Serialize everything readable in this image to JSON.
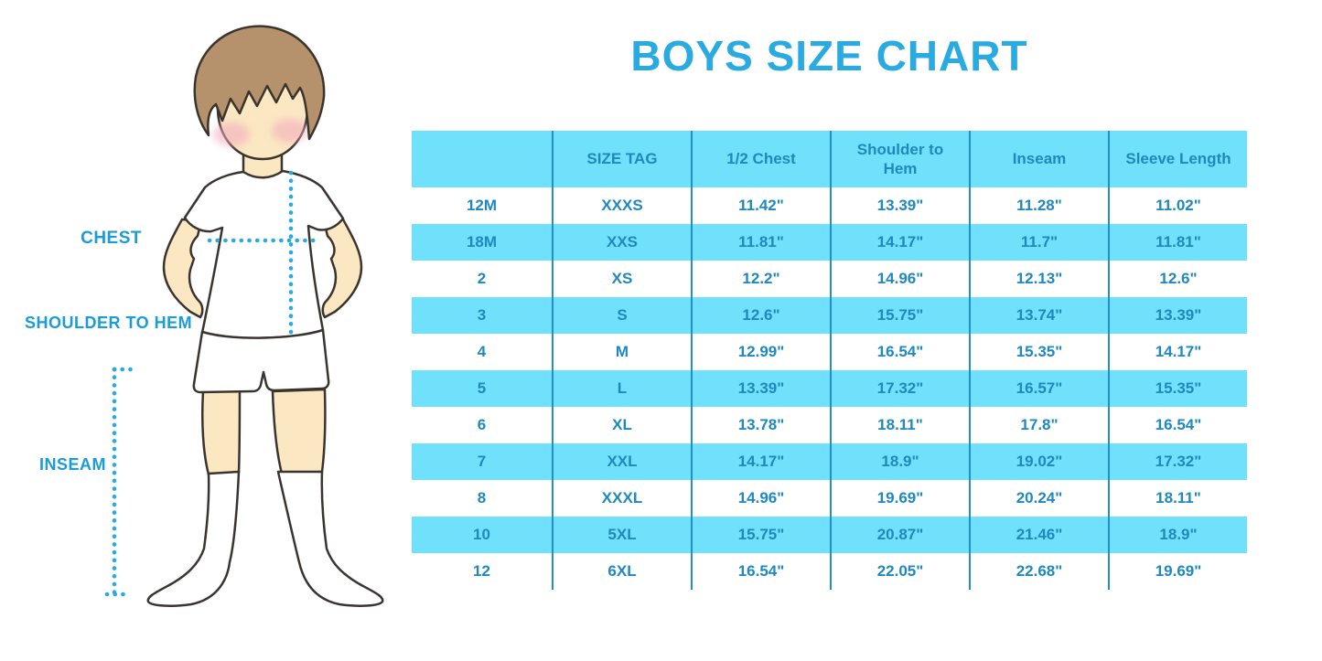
{
  "title": "BOYS SIZE CHART",
  "figure": {
    "chest_label": "CHEST",
    "shoulder_to_hem_label": "SHOULDER TO HEM",
    "inseam_label": "INSEAM"
  },
  "colors": {
    "title_blue": "#29ABE2",
    "label_blue": "#1A9CD8",
    "table_fill_cyan": "#70E1FA",
    "table_text_blue": "#1F88BE",
    "table_separator_blue": "#2090C6",
    "dotted_line_cyan": "#29ABE2",
    "skin": "#FBE7C2",
    "hair_brown": "#B5926B",
    "outline_dark": "#3A342E",
    "cheek_pink": "#F2A9BC"
  },
  "chart_data": {
    "type": "table",
    "title": "BOYS SIZE CHART",
    "columns": [
      "",
      "SIZE TAG",
      "1/2 Chest",
      "Shoulder to Hem",
      "Inseam",
      "Sleeve Length"
    ],
    "rows": [
      [
        "12M",
        "XXXS",
        "11.42\"",
        "13.39\"",
        "11.28\"",
        "11.02\""
      ],
      [
        "18M",
        "XXS",
        "11.81\"",
        "14.17\"",
        "11.7\"",
        "11.81\""
      ],
      [
        "2",
        "XS",
        "12.2\"",
        "14.96\"",
        "12.13\"",
        "12.6\""
      ],
      [
        "3",
        "S",
        "12.6\"",
        "15.75\"",
        "13.74\"",
        "13.39\""
      ],
      [
        "4",
        "M",
        "12.99\"",
        "16.54\"",
        "15.35\"",
        "14.17\""
      ],
      [
        "5",
        "L",
        "13.39\"",
        "17.32\"",
        "16.57\"",
        "15.35\""
      ],
      [
        "6",
        "XL",
        "13.78\"",
        "18.11\"",
        "17.8\"",
        "16.54\""
      ],
      [
        "7",
        "XXL",
        "14.17\"",
        "18.9\"",
        "19.02\"",
        "17.32\""
      ],
      [
        "8",
        "XXXL",
        "14.96\"",
        "19.69\"",
        "20.24\"",
        "18.11\""
      ],
      [
        "10",
        "5XL",
        "15.75\"",
        "20.87\"",
        "21.46\"",
        "18.9\""
      ],
      [
        "12",
        "6XL",
        "16.54\"",
        "22.05\"",
        "22.68\"",
        "19.69\""
      ]
    ]
  }
}
